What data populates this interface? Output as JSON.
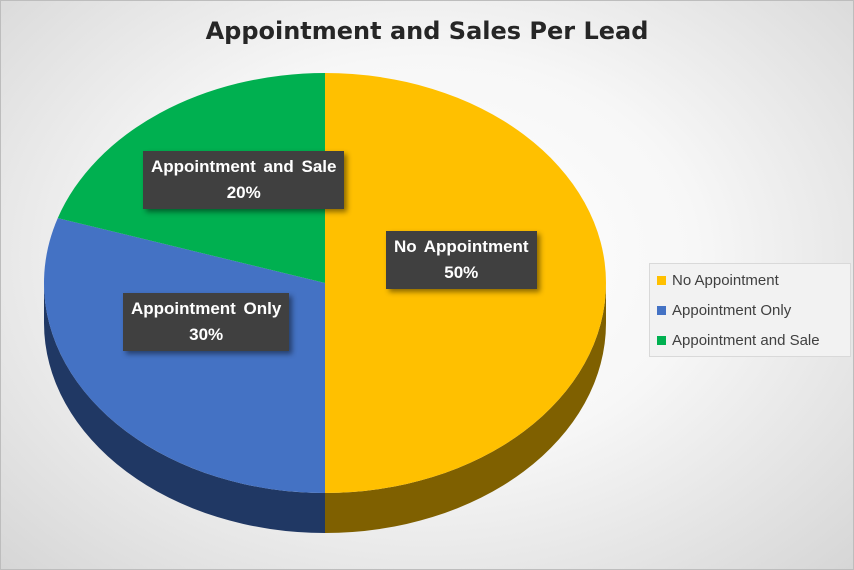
{
  "chart_data": {
    "type": "pie",
    "title": "Appointment and Sales Per Lead",
    "slices": [
      {
        "name": "No Appointment",
        "value": 50,
        "label": "50%",
        "color": "#FFC000",
        "side_color": "#7F6000"
      },
      {
        "name": "Appointment Only",
        "value": 30,
        "label": "30%",
        "color": "#4472C4",
        "side_color": "#203864"
      },
      {
        "name": "Appointment and Sale",
        "value": 20,
        "label": "20%",
        "color": "#00B050",
        "side_color": "#00602B"
      }
    ],
    "legend_position": "right",
    "start_angle_deg": 0,
    "direction": "clockwise",
    "three_d": true
  }
}
